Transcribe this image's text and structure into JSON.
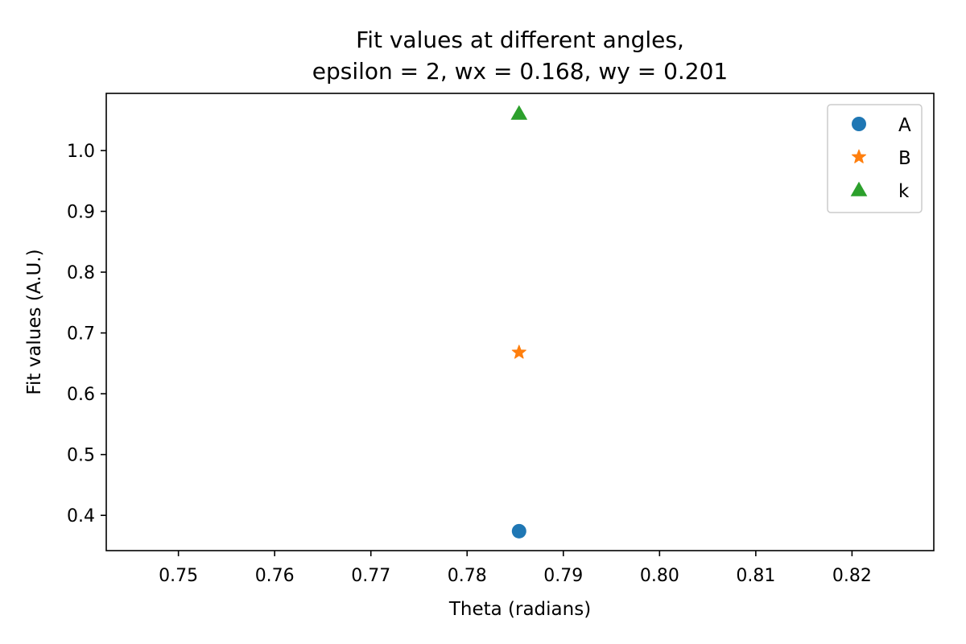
{
  "chart_data": {
    "type": "scatter",
    "title_lines": [
      "Fit values at different angles,",
      "epsilon =  2, wx = 0.168, wy = 0.201"
    ],
    "xlabel": "Theta (radians)",
    "ylabel": "Fit values (A.U.)",
    "xlim": [
      0.7425,
      0.8285
    ],
    "ylim": [
      0.342,
      1.094
    ],
    "xticks": [
      0.75,
      0.76,
      0.77,
      0.78,
      0.79,
      0.8,
      0.81,
      0.82
    ],
    "xtick_labels": [
      "0.75",
      "0.76",
      "0.77",
      "0.78",
      "0.79",
      "0.80",
      "0.81",
      "0.82"
    ],
    "yticks": [
      0.4,
      0.5,
      0.6,
      0.7,
      0.8,
      0.9,
      1.0
    ],
    "ytick_labels": [
      "0.4",
      "0.5",
      "0.6",
      "0.7",
      "0.8",
      "0.9",
      "1.0"
    ],
    "grid": false,
    "legend_position": "top-right",
    "series": [
      {
        "name": "A",
        "marker": "circle",
        "color": "#1f77b4",
        "x": [
          0.7854
        ],
        "y": [
          0.374
        ]
      },
      {
        "name": "B",
        "marker": "star",
        "color": "#ff7f0e",
        "x": [
          0.7854
        ],
        "y": [
          0.668
        ]
      },
      {
        "name": "k",
        "marker": "triangle",
        "color": "#2ca02c",
        "x": [
          0.7854
        ],
        "y": [
          1.061
        ]
      }
    ]
  }
}
